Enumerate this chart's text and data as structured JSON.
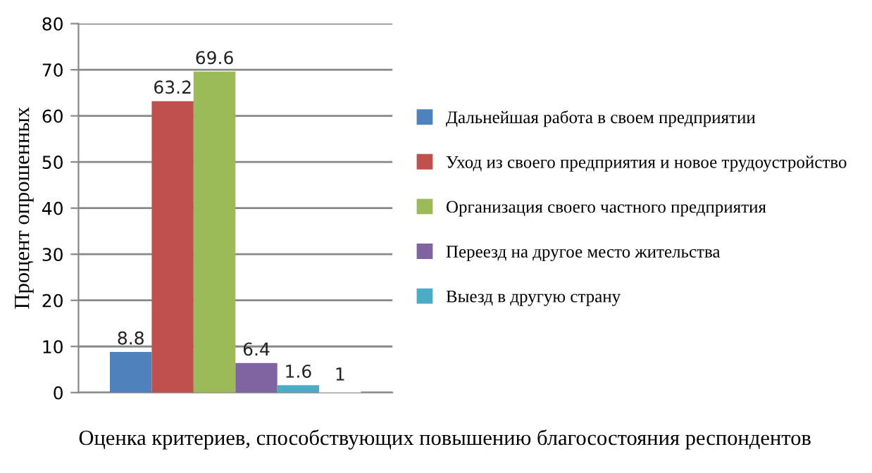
{
  "chart_data": {
    "type": "bar",
    "categories": [
      null
    ],
    "xlabel": "Оценка критериев, способствующих повышению благосостояния респондентов",
    "ylabel": "Процент опрошенных",
    "ylim": [
      0,
      80
    ],
    "yticks": [
      0,
      10,
      20,
      30,
      40,
      50,
      60,
      70,
      80
    ],
    "grid": "y",
    "legend": "right",
    "data_labels": true,
    "series": [
      {
        "name": "Дальнейшая работа в своем предприятии",
        "color": "#4f81bd",
        "values": [
          8.8
        ]
      },
      {
        "name": "Уход из своего предприятия и новое трудоустройство",
        "color": "#c0504d",
        "values": [
          63.2
        ]
      },
      {
        "name": "Организация своего частного предприятия",
        "color": "#9bbb59",
        "values": [
          69.6
        ]
      },
      {
        "name": "Переезд на другое место жительства",
        "color": "#8064a2",
        "values": [
          6.4
        ]
      },
      {
        "name": "Выезд в другую страну",
        "color": "#4bacc6",
        "values": [
          1.6
        ]
      },
      {
        "color": "#ffffff",
        "values": [
          1
        ]
      }
    ]
  }
}
